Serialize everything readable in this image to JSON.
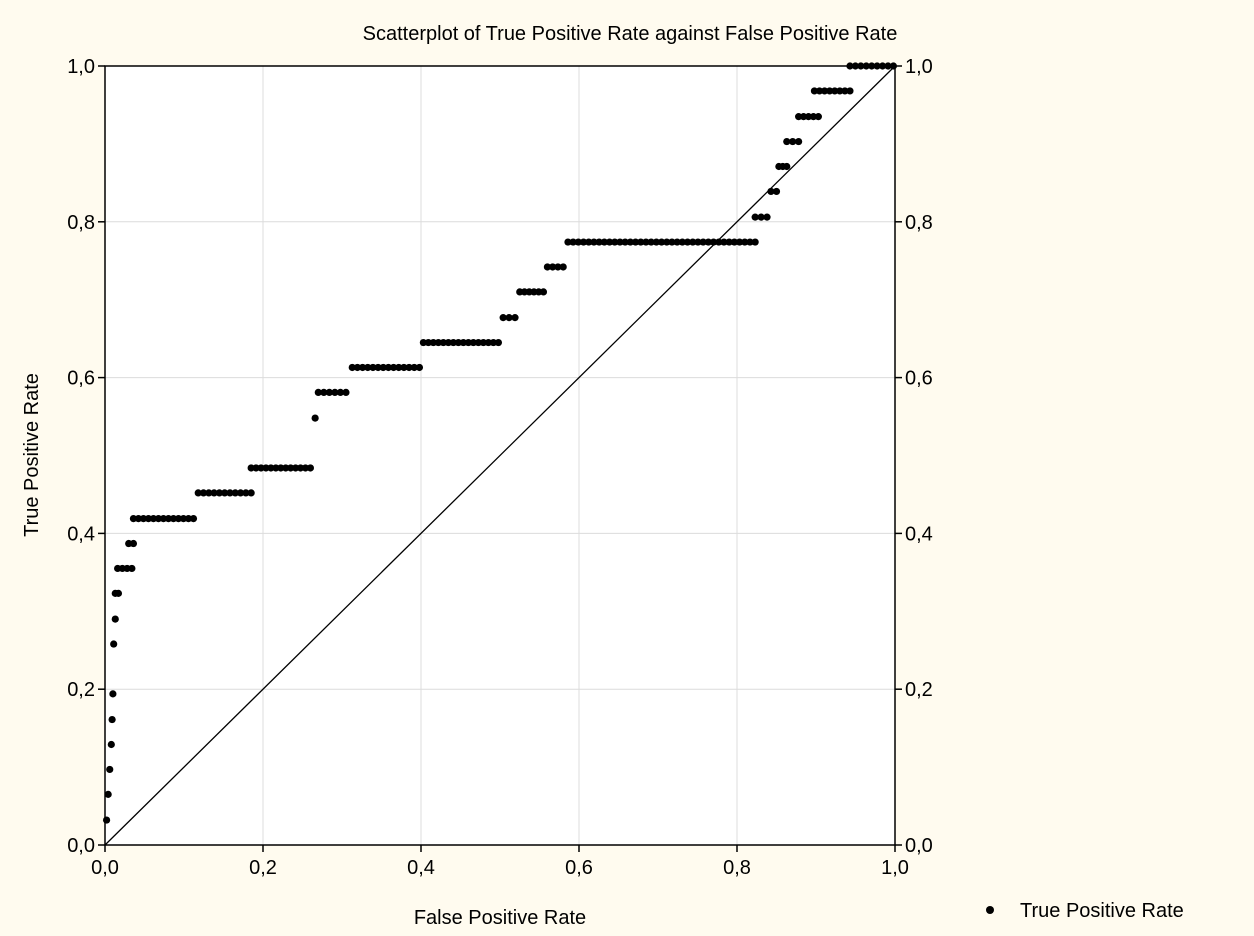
{
  "chart_data": {
    "type": "scatter",
    "title": "Scatterplot of True Positive Rate against False Positive Rate",
    "xlabel": "False Positive Rate",
    "ylabel": "True Positive Rate",
    "xlim": [
      0,
      1
    ],
    "ylim": [
      0,
      1
    ],
    "grid": true,
    "x_ticks": [
      "0,0",
      "0,2",
      "0,4",
      "0,6",
      "0,8",
      "1,0"
    ],
    "y_ticks": [
      "0,0",
      "0,2",
      "0,4",
      "0,6",
      "0,8",
      "1,0"
    ],
    "y_ticks_right": [
      "0,0",
      "0,2",
      "0,4",
      "0,6",
      "0,8",
      "1,0"
    ],
    "legend": {
      "position": "bottom-right",
      "label": "True Positive Rate"
    },
    "reference_line": {
      "from": [
        0,
        0
      ],
      "to": [
        1,
        1
      ]
    },
    "series": [
      {
        "name": "True Positive Rate",
        "color": "#000000",
        "segments": [
          {
            "y": 0.032,
            "x": [
              0.002
            ]
          },
          {
            "y": 0.065,
            "x": [
              0.004,
              0.006
            ]
          },
          {
            "y": 0.097,
            "x": [
              0.006,
              0.008
            ]
          },
          {
            "y": 0.129,
            "x": [
              0.008
            ]
          },
          {
            "y": 0.161,
            "x": [
              0.009
            ]
          },
          {
            "y": 0.194,
            "x": [
              0.01
            ]
          },
          {
            "y": 0.258,
            "x": [
              0.011,
              0.013
            ]
          },
          {
            "y": 0.29,
            "x": [
              0.013
            ]
          },
          {
            "y": 0.323,
            "x": [
              0.013,
              0.017
            ]
          },
          {
            "y": 0.355,
            "x": [
              0.016,
              0.034
            ]
          },
          {
            "y": 0.387,
            "x": [
              0.03,
              0.036
            ]
          },
          {
            "y": 0.419,
            "x": [
              0.036,
              0.112
            ]
          },
          {
            "y": 0.452,
            "x": [
              0.118,
              0.185
            ]
          },
          {
            "y": 0.484,
            "x": [
              0.185,
              0.26
            ]
          },
          {
            "y": 0.548,
            "x": [
              0.266
            ]
          },
          {
            "y": 0.581,
            "x": [
              0.27,
              0.305
            ]
          },
          {
            "y": 0.613,
            "x": [
              0.313,
              0.398
            ]
          },
          {
            "y": 0.645,
            "x": [
              0.403,
              0.498
            ]
          },
          {
            "y": 0.677,
            "x": [
              0.504,
              0.519
            ]
          },
          {
            "y": 0.71,
            "x": [
              0.525,
              0.555
            ]
          },
          {
            "y": 0.742,
            "x": [
              0.56,
              0.58
            ]
          },
          {
            "y": 0.774,
            "x": [
              0.586,
              0.823
            ]
          },
          {
            "y": 0.806,
            "x": [
              0.823,
              0.838
            ]
          },
          {
            "y": 0.839,
            "x": [
              0.843,
              0.85
            ]
          },
          {
            "y": 0.871,
            "x": [
              0.853,
              0.863
            ]
          },
          {
            "y": 0.903,
            "x": [
              0.863,
              0.878
            ]
          },
          {
            "y": 0.935,
            "x": [
              0.878,
              0.903
            ]
          },
          {
            "y": 0.968,
            "x": [
              0.898,
              0.943
            ]
          },
          {
            "y": 1.0,
            "x": [
              0.943,
              0.998
            ]
          }
        ]
      }
    ]
  }
}
